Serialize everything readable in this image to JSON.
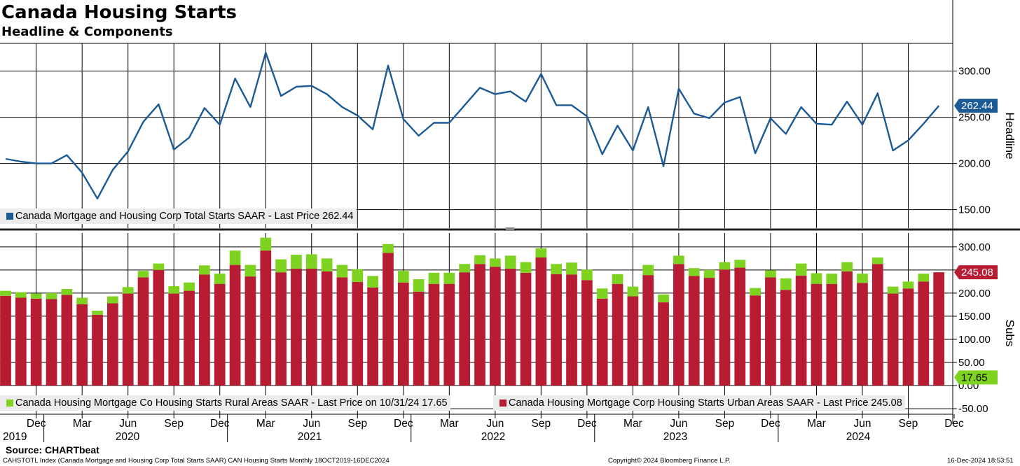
{
  "title": "Canada Housing Starts",
  "subtitle": "Headline & Components",
  "colors": {
    "headline": "#1c5a96",
    "rural": "#7ed321",
    "urban": "#b81c33",
    "headline_tag": "#1c5a96",
    "urban_tag": "#b81c33",
    "rural_tag": "#7ed321"
  },
  "chart_data": [
    {
      "type": "line",
      "name": "Headline",
      "ylabel": "Headline",
      "ylim": [
        130,
        330
      ],
      "yticks": [
        "150.00",
        "200.00",
        "250.00",
        "300.00"
      ],
      "last_value_label": "262.44",
      "legend": "Canada Mortgage and Housing Corp Total Starts SAAR - Last Price 262.44",
      "series": [
        {
          "name": "Canada Mortgage and Housing Corp Total Starts SAAR",
          "values": [
            205,
            202,
            200,
            200,
            209,
            190,
            162,
            193,
            213,
            245,
            264,
            215,
            228,
            260,
            242,
            292,
            261,
            320,
            273,
            283,
            284,
            275,
            261,
            252,
            237,
            306,
            248,
            230,
            244,
            244,
            263,
            282,
            275,
            278,
            267,
            297,
            263,
            263,
            251,
            210,
            241,
            214,
            261,
            197,
            281,
            254,
            249,
            266,
            272,
            211,
            249,
            232,
            261,
            243,
            242,
            267,
            242,
            276,
            214,
            225,
            243,
            262.44
          ]
        }
      ]
    },
    {
      "type": "bar",
      "name": "Subs",
      "stacked": true,
      "ylabel": "Subs",
      "ylim": [
        -62,
        330
      ],
      "yticks": [
        "-50.00",
        "0.00",
        "50.00",
        "100.00",
        "150.00",
        "200.00",
        "250.00",
        "300.00"
      ],
      "last_value_labels": {
        "urban": "245.08",
        "rural": "17.65"
      },
      "legend": [
        {
          "name": "rural",
          "text": "Canada Housing Mortgage Co Housing Starts Rural Areas SAAR - Last Price on 10/31/24 17.65"
        },
        {
          "name": "urban",
          "text": "Canada Housing Mortgage Corp Housing Starts Urban Areas SAAR - Last Price 245.08"
        }
      ],
      "series": [
        {
          "name": "Canada Housing Mortgage Corp Housing Starts Urban Areas SAAR",
          "values": [
            194,
            190,
            188,
            187,
            196,
            176,
            153,
            178,
            199,
            234,
            250,
            199,
            205,
            240,
            220,
            261,
            236,
            292,
            245,
            253,
            253,
            247,
            234,
            224,
            212,
            287,
            223,
            203,
            220,
            220,
            245,
            263,
            257,
            253,
            244,
            277,
            241,
            240,
            228,
            188,
            220,
            193,
            239,
            180,
            263,
            237,
            233,
            251,
            255,
            195,
            234,
            207,
            238,
            220,
            220,
            247,
            222,
            263,
            199,
            210,
            225,
            245.08
          ]
        },
        {
          "name": "Canada Housing Mortgage Co Housing Starts Rural Areas SAAR",
          "values": [
            11,
            12,
            11,
            13,
            13,
            14,
            9,
            15,
            14,
            14,
            14,
            16,
            18,
            20,
            22,
            31,
            25,
            28,
            28,
            30,
            31,
            28,
            27,
            28,
            25,
            19,
            25,
            27,
            24,
            24,
            18,
            19,
            18,
            28,
            23,
            20,
            22,
            26,
            23,
            22,
            21,
            21,
            22,
            17,
            18,
            17,
            17,
            16,
            17,
            16,
            15,
            25,
            26,
            23,
            22,
            20,
            20,
            14,
            15,
            15,
            17,
            null
          ]
        }
      ]
    }
  ],
  "x_axis": {
    "month_labels": [
      "Dec",
      "Mar",
      "Jun",
      "Sep",
      "Dec",
      "Mar",
      "Jun",
      "Sep",
      "Dec",
      "Mar",
      "Jun",
      "Sep",
      "Dec",
      "Mar",
      "Jun",
      "Sep",
      "Dec",
      "Mar",
      "Jun",
      "Sep",
      "Dec"
    ],
    "year_labels": [
      "2019",
      "2020",
      "2021",
      "2022",
      "2023",
      "2024"
    ]
  },
  "footer": {
    "source": "Source: CHARTbeat",
    "index_line": "CAHSTOTL Index (Canada Mortgage and Housing Corp Total Starts SAAR) CAN Housing Starts  Monthly 18OCT2019-16DEC2024",
    "copyright": "Copyright© 2024 Bloomberg Finance L.P.",
    "timestamp": "16-Dec-2024 18:53:51"
  }
}
